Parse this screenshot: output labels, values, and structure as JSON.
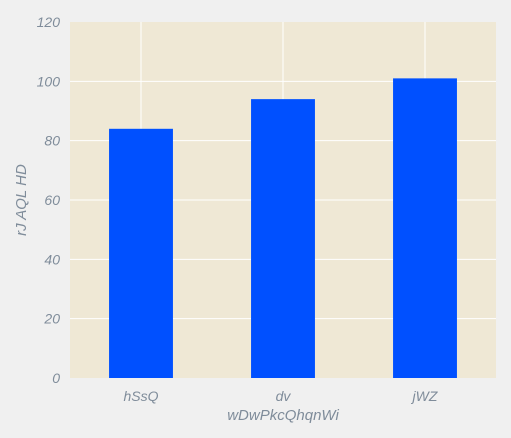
{
  "chart_data": {
    "type": "bar",
    "categories": [
      "hSsQ",
      "dv",
      "jWZ"
    ],
    "values": [
      84,
      94,
      101
    ],
    "xlabel": "wDwPkcQhqnWi",
    "ylabel": "rJ AQL HD",
    "ylim": [
      0,
      120
    ],
    "yticks": [
      0,
      20,
      40,
      60,
      80,
      100,
      120
    ],
    "grid": true,
    "colors": {
      "bar": "#0050ff",
      "plot_background": "#efe8d5",
      "figure_background": "#f0f0f0",
      "grid": "#ffffff",
      "text": "#7f8c9a"
    }
  }
}
